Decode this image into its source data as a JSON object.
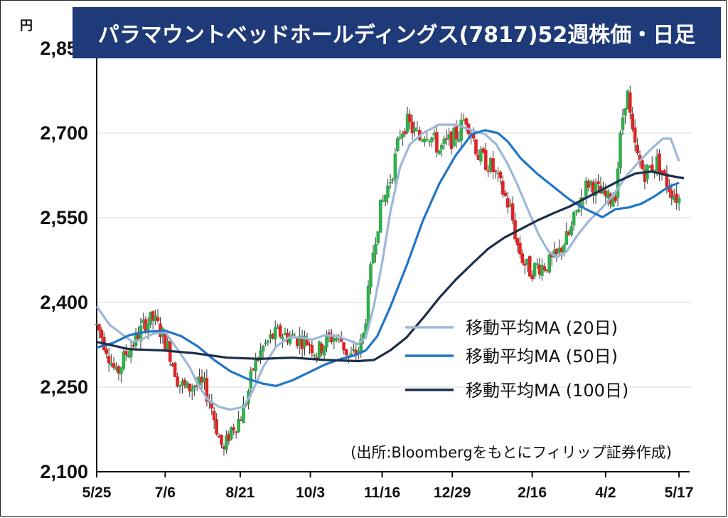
{
  "chart_data": {
    "type": "candlestick",
    "title": "パラマウントベッドホールディングス(7817)52週株価・日足",
    "y_unit": "円",
    "ylim": [
      2100,
      2850
    ],
    "y_ticks": [
      "2,100",
      "2,250",
      "2,400",
      "2,550",
      "2,700",
      "2,850"
    ],
    "y_tick_values": [
      2100,
      2250,
      2400,
      2550,
      2700,
      2850
    ],
    "x_ticks": [
      "5/25",
      "7/6",
      "8/21",
      "10/3",
      "11/16",
      "12/29",
      "2/16",
      "4/2",
      "5/17"
    ],
    "x_tick_days": [
      0,
      42,
      88,
      131,
      175,
      218,
      267,
      312,
      357
    ],
    "x_range_days": [
      0,
      360
    ],
    "grid": "horizontal",
    "legend_position": "bottom-right",
    "series": [
      {
        "name": "移動平均MA (20日)",
        "color": "#9db7d9",
        "points": [
          [
            0,
            2393
          ],
          [
            8,
            2360
          ],
          [
            15,
            2345
          ],
          [
            22,
            2330
          ],
          [
            28,
            2335
          ],
          [
            35,
            2345
          ],
          [
            42,
            2347
          ],
          [
            50,
            2315
          ],
          [
            57,
            2285
          ],
          [
            62,
            2255
          ],
          [
            68,
            2228
          ],
          [
            75,
            2215
          ],
          [
            82,
            2210
          ],
          [
            90,
            2215
          ],
          [
            96,
            2245
          ],
          [
            102,
            2285
          ],
          [
            110,
            2322
          ],
          [
            118,
            2338
          ],
          [
            125,
            2338
          ],
          [
            132,
            2334
          ],
          [
            140,
            2342
          ],
          [
            148,
            2340
          ],
          [
            155,
            2332
          ],
          [
            160,
            2326
          ],
          [
            165,
            2338
          ],
          [
            170,
            2395
          ],
          [
            175,
            2470
          ],
          [
            180,
            2560
          ],
          [
            186,
            2640
          ],
          [
            192,
            2680
          ],
          [
            200,
            2700
          ],
          [
            210,
            2715
          ],
          [
            220,
            2715
          ],
          [
            230,
            2705
          ],
          [
            238,
            2698
          ],
          [
            245,
            2680
          ],
          [
            252,
            2645
          ],
          [
            258,
            2608
          ],
          [
            265,
            2560
          ],
          [
            271,
            2520
          ],
          [
            277,
            2490
          ],
          [
            282,
            2480
          ],
          [
            288,
            2490
          ],
          [
            295,
            2520
          ],
          [
            302,
            2545
          ],
          [
            310,
            2568
          ],
          [
            318,
            2595
          ],
          [
            325,
            2625
          ],
          [
            332,
            2648
          ],
          [
            340,
            2672
          ],
          [
            347,
            2690
          ],
          [
            352,
            2690
          ],
          [
            357,
            2650
          ]
        ]
      },
      {
        "name": "移動平均MA (50日)",
        "color": "#2176c7",
        "points": [
          [
            0,
            2320
          ],
          [
            10,
            2328
          ],
          [
            20,
            2342
          ],
          [
            30,
            2348
          ],
          [
            42,
            2350
          ],
          [
            52,
            2340
          ],
          [
            62,
            2322
          ],
          [
            72,
            2298
          ],
          [
            82,
            2278
          ],
          [
            92,
            2265
          ],
          [
            102,
            2256
          ],
          [
            110,
            2252
          ],
          [
            120,
            2262
          ],
          [
            130,
            2276
          ],
          [
            140,
            2290
          ],
          [
            150,
            2300
          ],
          [
            158,
            2306
          ],
          [
            165,
            2315
          ],
          [
            172,
            2340
          ],
          [
            180,
            2392
          ],
          [
            190,
            2465
          ],
          [
            200,
            2545
          ],
          [
            210,
            2610
          ],
          [
            220,
            2660
          ],
          [
            230,
            2698
          ],
          [
            238,
            2705
          ],
          [
            246,
            2700
          ],
          [
            252,
            2685
          ],
          [
            260,
            2655
          ],
          [
            270,
            2628
          ],
          [
            280,
            2605
          ],
          [
            290,
            2582
          ],
          [
            300,
            2565
          ],
          [
            310,
            2551
          ],
          [
            318,
            2565
          ],
          [
            326,
            2568
          ],
          [
            334,
            2575
          ],
          [
            342,
            2588
          ],
          [
            350,
            2604
          ],
          [
            357,
            2612
          ]
        ]
      },
      {
        "name": "移動平均MA (100日)",
        "color": "#1c2e4a",
        "points": [
          [
            0,
            2330
          ],
          [
            20,
            2317
          ],
          [
            40,
            2315
          ],
          [
            60,
            2310
          ],
          [
            80,
            2302
          ],
          [
            100,
            2300
          ],
          [
            120,
            2302
          ],
          [
            140,
            2298
          ],
          [
            160,
            2296
          ],
          [
            170,
            2298
          ],
          [
            180,
            2315
          ],
          [
            190,
            2338
          ],
          [
            200,
            2372
          ],
          [
            210,
            2408
          ],
          [
            220,
            2440
          ],
          [
            230,
            2468
          ],
          [
            240,
            2495
          ],
          [
            250,
            2515
          ],
          [
            260,
            2530
          ],
          [
            270,
            2545
          ],
          [
            280,
            2558
          ],
          [
            290,
            2570
          ],
          [
            300,
            2585
          ],
          [
            310,
            2600
          ],
          [
            320,
            2615
          ],
          [
            330,
            2628
          ],
          [
            340,
            2632
          ],
          [
            350,
            2625
          ],
          [
            360,
            2620
          ]
        ]
      }
    ],
    "candle_anchors": [
      [
        0,
        2360
      ],
      [
        6,
        2320
      ],
      [
        12,
        2270
      ],
      [
        18,
        2310
      ],
      [
        25,
        2340
      ],
      [
        30,
        2365
      ],
      [
        35,
        2370
      ],
      [
        40,
        2345
      ],
      [
        45,
        2310
      ],
      [
        50,
        2260
      ],
      [
        55,
        2245
      ],
      [
        60,
        2255
      ],
      [
        66,
        2250
      ],
      [
        70,
        2220
      ],
      [
        75,
        2160
      ],
      [
        78,
        2135
      ],
      [
        82,
        2175
      ],
      [
        88,
        2195
      ],
      [
        92,
        2230
      ],
      [
        96,
        2285
      ],
      [
        102,
        2320
      ],
      [
        108,
        2340
      ],
      [
        113,
        2345
      ],
      [
        118,
        2340
      ],
      [
        125,
        2335
      ],
      [
        130,
        2330
      ],
      [
        135,
        2310
      ],
      [
        140,
        2330
      ],
      [
        145,
        2340
      ],
      [
        150,
        2332
      ],
      [
        155,
        2300
      ],
      [
        160,
        2315
      ],
      [
        163,
        2330
      ],
      [
        166,
        2400
      ],
      [
        170,
        2505
      ],
      [
        174,
        2565
      ],
      [
        178,
        2600
      ],
      [
        182,
        2640
      ],
      [
        186,
        2700
      ],
      [
        190,
        2720
      ],
      [
        194,
        2705
      ],
      [
        198,
        2690
      ],
      [
        202,
        2705
      ],
      [
        206,
        2690
      ],
      [
        210,
        2670
      ],
      [
        214,
        2680
      ],
      [
        218,
        2690
      ],
      [
        222,
        2700
      ],
      [
        226,
        2730
      ],
      [
        230,
        2700
      ],
      [
        234,
        2660
      ],
      [
        238,
        2650
      ],
      [
        242,
        2640
      ],
      [
        246,
        2615
      ],
      [
        250,
        2590
      ],
      [
        254,
        2560
      ],
      [
        258,
        2500
      ],
      [
        262,
        2470
      ],
      [
        266,
        2455
      ],
      [
        270,
        2465
      ],
      [
        274,
        2465
      ],
      [
        278,
        2470
      ],
      [
        282,
        2480
      ],
      [
        286,
        2505
      ],
      [
        290,
        2520
      ],
      [
        294,
        2560
      ],
      [
        298,
        2595
      ],
      [
        302,
        2615
      ],
      [
        306,
        2600
      ],
      [
        310,
        2590
      ],
      [
        314,
        2580
      ],
      [
        318,
        2595
      ],
      [
        322,
        2720
      ],
      [
        325,
        2780
      ],
      [
        328,
        2700
      ],
      [
        332,
        2650
      ],
      [
        336,
        2630
      ],
      [
        340,
        2640
      ],
      [
        344,
        2650
      ],
      [
        348,
        2620
      ],
      [
        352,
        2600
      ],
      [
        356,
        2585
      ],
      [
        360,
        2580
      ]
    ],
    "source": "(出所:Bloombergをもとにフィリップ証券作成)"
  }
}
